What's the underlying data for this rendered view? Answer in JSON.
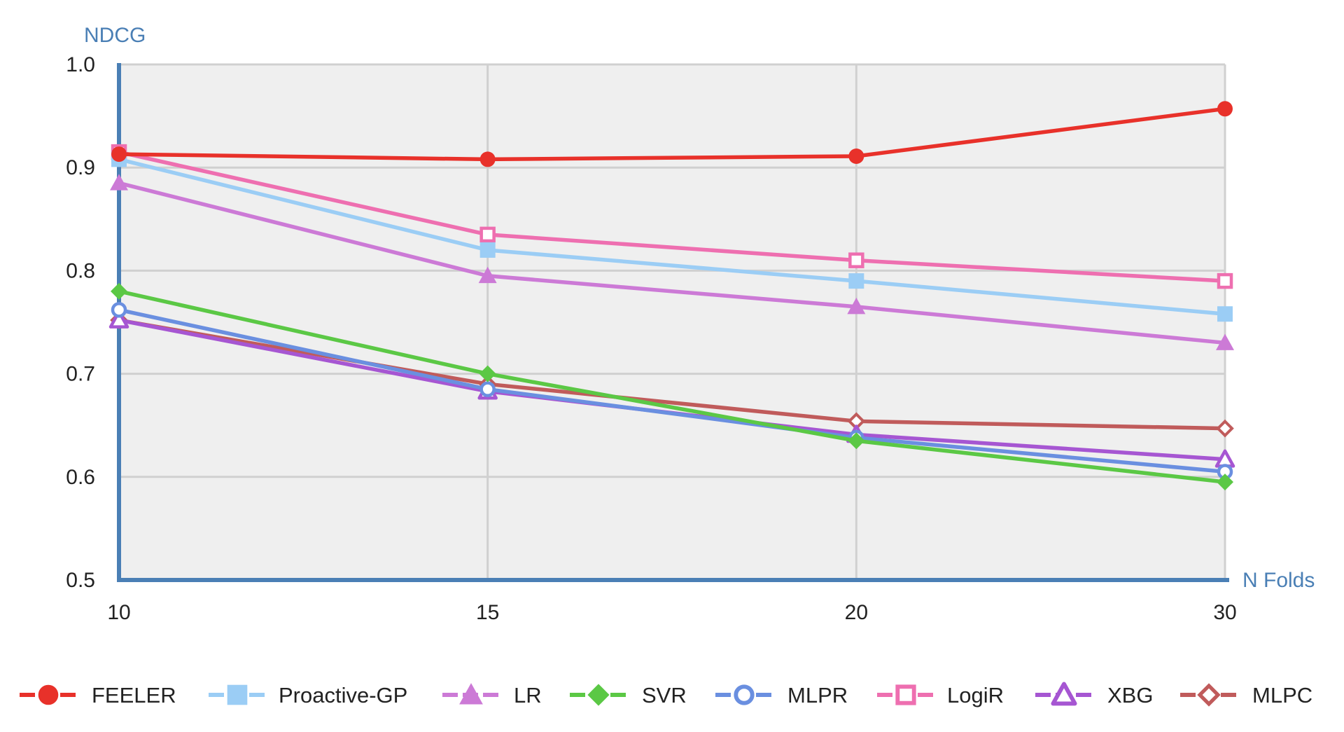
{
  "chart_data": {
    "type": "line",
    "title": "",
    "ylabel": "NDCG",
    "xlabel": "N Folds",
    "categories": [
      "10",
      "15",
      "20",
      "30"
    ],
    "y_ticks": [
      "0.5",
      "0.6",
      "0.7",
      "0.8",
      "0.9",
      "1.0"
    ],
    "ylim": [
      0.5,
      1.0
    ],
    "grid": true,
    "legend_position": "bottom",
    "series": [
      {
        "name": "FEELER",
        "values": [
          0.913,
          0.908,
          0.911,
          0.957
        ],
        "color": "#e8312a",
        "marker": "filled-circle"
      },
      {
        "name": "Proactive-GP",
        "values": [
          0.908,
          0.82,
          0.79,
          0.758
        ],
        "color": "#9bcdf5",
        "marker": "filled-square"
      },
      {
        "name": "LR",
        "values": [
          0.885,
          0.795,
          0.765,
          0.73
        ],
        "color": "#cc7ad6",
        "marker": "filled-triangle"
      },
      {
        "name": "SVR",
        "values": [
          0.78,
          0.7,
          0.635,
          0.595
        ],
        "color": "#5bc845",
        "marker": "filled-diamond"
      },
      {
        "name": "MLPR",
        "values": [
          0.762,
          0.685,
          0.638,
          0.605
        ],
        "color": "#6a8fe0",
        "marker": "hollow-circle"
      },
      {
        "name": "LogiR",
        "values": [
          0.915,
          0.835,
          0.81,
          0.79
        ],
        "color": "#ee6fb0",
        "marker": "hollow-square"
      },
      {
        "name": "XBG",
        "values": [
          0.752,
          0.683,
          0.641,
          0.617
        ],
        "color": "#a656d2",
        "marker": "hollow-triangle"
      },
      {
        "name": "MLPC",
        "values": [
          0.752,
          0.69,
          0.654,
          0.647
        ],
        "color": "#c05b5b",
        "marker": "hollow-diamond"
      }
    ],
    "colors": {
      "axis": "#4a7fb5",
      "plot_background": "#efefef",
      "grid": "#d0d0d0"
    }
  }
}
